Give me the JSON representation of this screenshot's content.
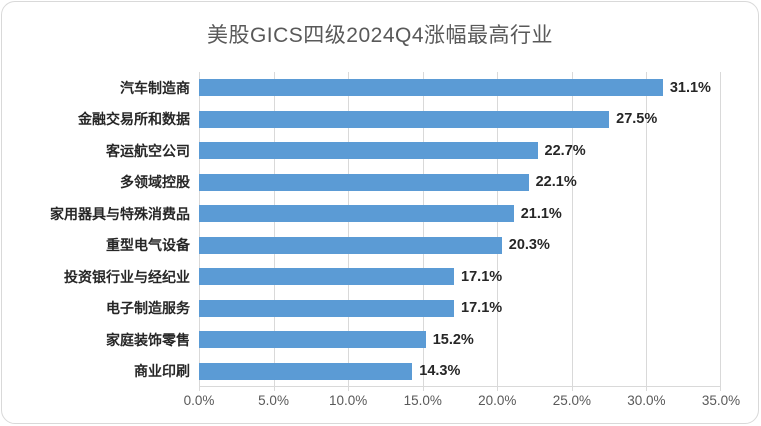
{
  "chart_data": {
    "type": "bar",
    "orientation": "horizontal",
    "title": "美股GICS四级2024Q4涨幅最高行业",
    "categories": [
      "汽车制造商",
      "金融交易所和数据",
      "客运航空公司",
      "多领域控股",
      "家用器具与特殊消费品",
      "重型电气设备",
      "投资银行业与经纪业",
      "电子制造服务",
      "家庭装饰零售",
      "商业印刷"
    ],
    "values": [
      31.1,
      27.5,
      22.7,
      22.1,
      21.1,
      20.3,
      17.1,
      17.1,
      15.2,
      14.3
    ],
    "value_labels": [
      "31.1%",
      "27.5%",
      "22.7%",
      "22.1%",
      "21.1%",
      "20.3%",
      "17.1%",
      "17.1%",
      "15.2%",
      "14.3%"
    ],
    "x_ticks": [
      "0.0%",
      "5.0%",
      "10.0%",
      "15.0%",
      "20.0%",
      "25.0%",
      "30.0%",
      "35.0%"
    ],
    "xlim": [
      0,
      35
    ],
    "grid": true,
    "legend": "none",
    "colors": {
      "bar": "#5B9BD5",
      "gridline": "#D9D9D9",
      "border": "#D9D9D9",
      "title_text": "#595959",
      "axis_text": "#595959",
      "label_text": "#262626",
      "background": "#FFFFFF"
    }
  }
}
